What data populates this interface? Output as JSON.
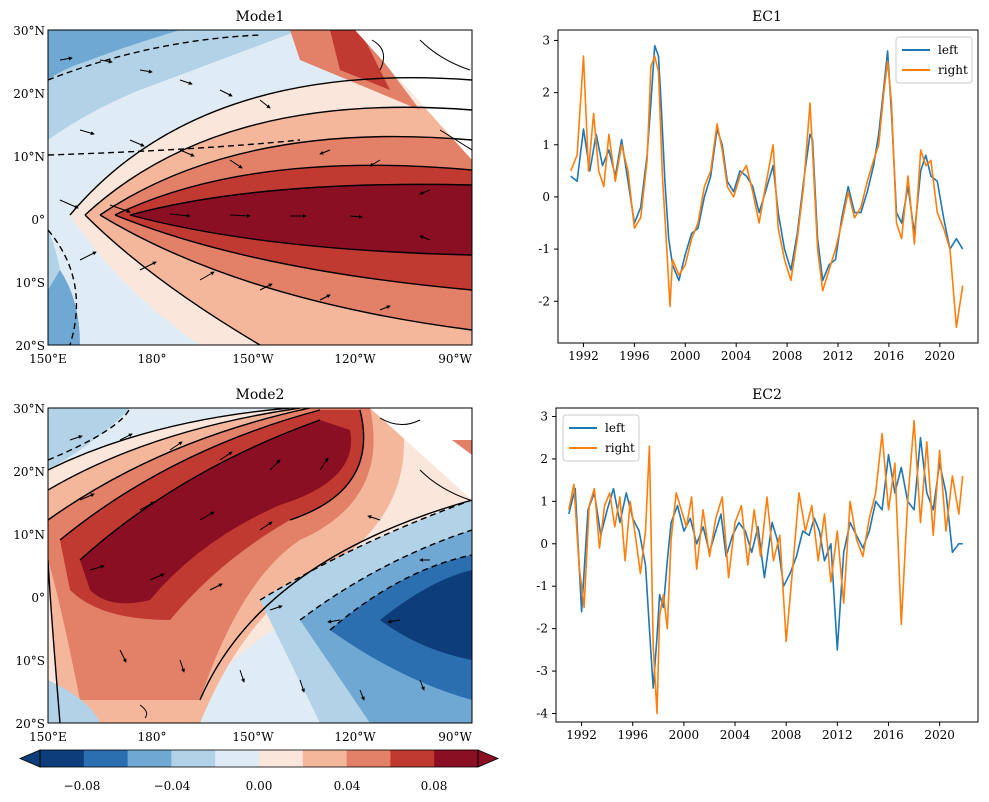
{
  "chart_data": [
    {
      "type": "heatmap",
      "title": "Mode1",
      "lon_ticks": [
        "150°E",
        "180°",
        "150°W",
        "120°W",
        "90°W"
      ],
      "lat_ticks": [
        "30°N",
        "20°N",
        "10°N",
        "0°",
        "10°S",
        "20°S"
      ],
      "lon_range": [
        150,
        280
      ],
      "lat_range": [
        -20,
        30
      ],
      "grid": false,
      "pattern": "El Niño-like warm tongue along equatorial Pacific, negative anomalies in western Pacific, wind vectors converging"
    },
    {
      "type": "line",
      "title": "EC1",
      "legend": "top-right",
      "xlim": [
        1990,
        2023
      ],
      "ylim": [
        -2.8,
        3.2
      ],
      "x_ticks": [
        "1992",
        "1996",
        "2000",
        "2004",
        "2008",
        "2012",
        "2016",
        "2020"
      ],
      "y_ticks": [
        "3",
        "2",
        "1",
        "0",
        "-1",
        "-2"
      ],
      "series": [
        {
          "name": "left",
          "color": "#1f77b4",
          "x": [
            1991.0,
            1991.5,
            1992.0,
            1992.5,
            1993.0,
            1993.5,
            1994.0,
            1994.5,
            1995.0,
            1995.5,
            1996.0,
            1996.5,
            1997.0,
            1997.3,
            1997.6,
            1997.9,
            1998.1,
            1998.4,
            1998.7,
            1999.0,
            1999.5,
            2000.0,
            2000.5,
            2001.0,
            2001.5,
            2002.0,
            2002.5,
            2002.9,
            2003.3,
            2003.8,
            2004.3,
            2004.8,
            2005.3,
            2005.8,
            2006.3,
            2006.9,
            2007.3,
            2007.8,
            2008.3,
            2008.8,
            2009.3,
            2009.8,
            2010.0,
            2010.4,
            2010.8,
            2011.3,
            2011.8,
            2012.3,
            2012.8,
            2013.3,
            2013.8,
            2014.3,
            2014.8,
            2015.2,
            2015.6,
            2015.9,
            2016.2,
            2016.6,
            2017.0,
            2017.5,
            2018.0,
            2018.5,
            2018.9,
            2019.3,
            2019.8,
            2020.3,
            2020.8,
            2021.3,
            2021.8
          ],
          "y": [
            0.4,
            0.3,
            1.3,
            0.5,
            1.2,
            0.6,
            0.9,
            0.4,
            1.1,
            0.3,
            -0.5,
            -0.2,
            0.8,
            1.8,
            2.9,
            2.7,
            1.8,
            0.3,
            -0.8,
            -1.3,
            -1.6,
            -1.1,
            -0.7,
            -0.6,
            0.0,
            0.4,
            1.3,
            1.0,
            0.3,
            0.1,
            0.5,
            0.4,
            0.2,
            -0.3,
            0.1,
            0.6,
            -0.3,
            -1.0,
            -1.4,
            -0.7,
            0.3,
            1.2,
            1.1,
            -0.8,
            -1.6,
            -1.3,
            -1.2,
            -0.4,
            0.2,
            -0.3,
            -0.3,
            0.1,
            0.6,
            1.2,
            2.1,
            2.8,
            1.6,
            -0.3,
            -0.5,
            0.2,
            -0.7,
            0.5,
            0.8,
            0.4,
            0.3,
            -0.4,
            -1.0,
            -0.8,
            -1.0
          ]
        },
        {
          "name": "right",
          "color": "#ff7f0e",
          "x": [
            1991.0,
            1991.5,
            1992.0,
            1992.4,
            1992.8,
            1993.2,
            1993.6,
            1994.0,
            1994.5,
            1995.0,
            1995.5,
            1996.0,
            1996.5,
            1997.0,
            1997.3,
            1997.6,
            1997.9,
            1998.2,
            1998.5,
            1998.8,
            1999.0,
            1999.5,
            2000.0,
            2000.5,
            2001.0,
            2001.5,
            2002.0,
            2002.5,
            2002.9,
            2003.3,
            2003.8,
            2004.3,
            2004.8,
            2005.3,
            2005.8,
            2006.3,
            2006.9,
            2007.3,
            2007.8,
            2008.3,
            2008.8,
            2009.3,
            2009.8,
            2010.0,
            2010.4,
            2010.8,
            2011.3,
            2011.8,
            2012.3,
            2012.8,
            2013.3,
            2013.8,
            2014.3,
            2014.8,
            2015.2,
            2015.6,
            2015.9,
            2016.2,
            2016.6,
            2017.0,
            2017.5,
            2018.0,
            2018.5,
            2018.9,
            2019.3,
            2019.8,
            2020.3,
            2020.8,
            2021.3,
            2021.8
          ],
          "y": [
            0.5,
            0.8,
            2.7,
            0.5,
            1.6,
            0.5,
            0.2,
            1.2,
            0.3,
            1.0,
            0.5,
            -0.6,
            -0.4,
            0.7,
            2.5,
            2.7,
            2.4,
            0.4,
            -0.8,
            -2.1,
            -1.2,
            -1.5,
            -1.3,
            -0.8,
            -0.5,
            0.2,
            0.5,
            1.4,
            0.9,
            0.2,
            0.0,
            0.4,
            0.6,
            0.1,
            -0.5,
            0.2,
            1.0,
            -0.6,
            -1.2,
            -1.6,
            -0.8,
            0.2,
            1.8,
            0.9,
            -1.0,
            -1.8,
            -1.4,
            -1.0,
            -0.5,
            0.1,
            -0.4,
            -0.2,
            0.3,
            0.7,
            1.0,
            2.0,
            2.6,
            1.8,
            -0.5,
            -0.8,
            0.4,
            -0.9,
            0.9,
            0.6,
            0.7,
            -0.3,
            -0.6,
            -1.0,
            -2.5,
            -1.7
          ]
        }
      ]
    },
    {
      "type": "heatmap",
      "title": "Mode2",
      "lon_ticks": [
        "150°E",
        "180°",
        "150°W",
        "120°W",
        "90°W"
      ],
      "lat_ticks": [
        "30°N",
        "20°N",
        "10°N",
        "0°",
        "10°S",
        "20°S"
      ],
      "lon_range": [
        150,
        280
      ],
      "lat_range": [
        -20,
        30
      ],
      "grid": false,
      "pattern": "Positive anomaly band from western tropical Pacific extending northeast, negative anomalies in eastern equatorial Pacific"
    },
    {
      "type": "line",
      "title": "EC2",
      "legend": "top-left",
      "xlim": [
        1990,
        2023
      ],
      "ylim": [
        -4.2,
        3.2
      ],
      "x_ticks": [
        "1992",
        "1996",
        "2000",
        "2004",
        "2008",
        "2012",
        "2016",
        "2020"
      ],
      "y_ticks": [
        "3",
        "2",
        "1",
        "0",
        "-1",
        "-2",
        "-3",
        "-4"
      ],
      "series": [
        {
          "name": "left",
          "color": "#1f77b4",
          "x": [
            1991.0,
            1991.5,
            1992.0,
            1992.5,
            1993.0,
            1993.5,
            1994.0,
            1994.5,
            1995.0,
            1995.5,
            1996.0,
            1996.5,
            1997.0,
            1997.3,
            1997.6,
            1997.9,
            1998.1,
            1998.4,
            1998.7,
            1999.0,
            1999.5,
            2000.0,
            2000.5,
            2001.0,
            2001.5,
            2002.0,
            2002.5,
            2002.9,
            2003.3,
            2003.8,
            2004.3,
            2004.8,
            2005.3,
            2005.8,
            2006.3,
            2006.9,
            2007.3,
            2007.8,
            2008.3,
            2008.8,
            2009.3,
            2009.8,
            2010.2,
            2010.6,
            2011.0,
            2011.5,
            2012.0,
            2012.5,
            2013.0,
            2013.5,
            2014.0,
            2014.5,
            2015.0,
            2015.5,
            2016.0,
            2016.5,
            2017.0,
            2017.5,
            2018.0,
            2018.5,
            2019.0,
            2019.5,
            2020.0,
            2020.5,
            2021.0,
            2021.5,
            2021.8
          ],
          "y": [
            0.7,
            1.3,
            -1.6,
            0.8,
            1.2,
            0.2,
            0.8,
            1.3,
            0.5,
            1.2,
            0.6,
            0.3,
            -0.5,
            -2.0,
            -3.4,
            -2.2,
            -1.2,
            -1.5,
            -0.4,
            0.5,
            0.9,
            0.3,
            0.6,
            0.0,
            0.4,
            -0.2,
            0.3,
            0.7,
            -0.3,
            0.2,
            0.5,
            0.3,
            -0.2,
            0.4,
            -0.8,
            0.5,
            0.1,
            -1.0,
            -0.7,
            -0.3,
            0.3,
            0.2,
            0.6,
            0.3,
            -0.4,
            0.0,
            -2.5,
            -0.2,
            0.5,
            0.2,
            -0.1,
            0.3,
            1.0,
            0.8,
            2.1,
            1.2,
            1.8,
            1.0,
            0.8,
            2.5,
            1.2,
            0.8,
            1.9,
            1.2,
            -0.2,
            0.0,
            0.0
          ]
        },
        {
          "name": "right",
          "color": "#ff7f0e",
          "x": [
            1991.0,
            1991.4,
            1991.8,
            1992.2,
            1992.6,
            1993.0,
            1993.4,
            1993.8,
            1994.2,
            1994.6,
            1995.0,
            1995.4,
            1995.8,
            1996.2,
            1996.6,
            1997.0,
            1997.3,
            1997.6,
            1997.9,
            1998.1,
            1998.4,
            1998.7,
            1999.0,
            1999.4,
            1999.8,
            2000.2,
            2000.6,
            2001.0,
            2001.5,
            2002.0,
            2002.5,
            2003.0,
            2003.5,
            2004.0,
            2004.5,
            2005.0,
            2005.5,
            2006.0,
            2006.5,
            2007.0,
            2007.5,
            2008.0,
            2008.5,
            2009.0,
            2009.5,
            2010.0,
            2010.5,
            2011.0,
            2011.5,
            2012.0,
            2012.5,
            2013.0,
            2013.5,
            2014.0,
            2014.5,
            2015.0,
            2015.5,
            2016.0,
            2016.5,
            2017.0,
            2017.5,
            2018.0,
            2018.5,
            2019.0,
            2019.5,
            2020.0,
            2020.5,
            2021.0,
            2021.5,
            2021.8
          ],
          "y": [
            0.8,
            1.4,
            -0.5,
            -1.5,
            0.9,
            1.3,
            -0.1,
            0.9,
            1.2,
            0.4,
            1.1,
            -0.4,
            1.0,
            0.2,
            -0.7,
            0.3,
            2.3,
            -2.4,
            -4.0,
            -1.7,
            -1.2,
            -2.0,
            0.1,
            1.2,
            0.8,
            0.4,
            1.1,
            -0.6,
            0.8,
            -0.3,
            0.6,
            1.1,
            -0.8,
            0.5,
            0.9,
            -0.5,
            0.8,
            -0.3,
            1.1,
            -0.4,
            0.2,
            -2.3,
            -0.6,
            1.2,
            0.3,
            0.9,
            -0.4,
            0.7,
            -0.9,
            0.3,
            -1.4,
            1.0,
            0.1,
            -0.3,
            0.6,
            1.2,
            2.6,
            0.8,
            1.9,
            -1.9,
            1.0,
            2.9,
            0.5,
            2.4,
            0.2,
            2.2,
            0.3,
            1.6,
            0.7,
            1.6
          ]
        }
      ]
    }
  ],
  "colorbar": {
    "ticks": [
      "−0.08",
      "−0.04",
      "0.00",
      "0.04",
      "0.08"
    ],
    "colors": [
      "#0d3d7a",
      "#2c6fb0",
      "#6ea8d3",
      "#b2d2e7",
      "#e0ecf5",
      "#fbe6dc",
      "#f4b79c",
      "#e28068",
      "#c03a32",
      "#8a0f22"
    ]
  }
}
